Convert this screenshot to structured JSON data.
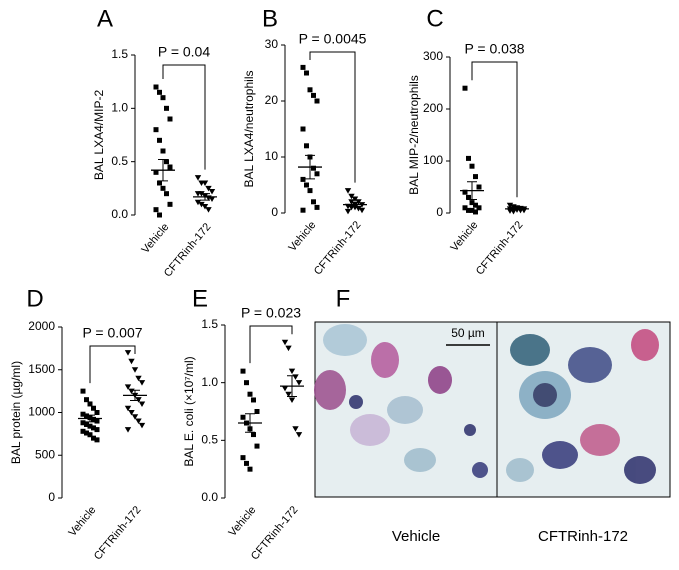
{
  "chart_data": [
    {
      "type": "strip",
      "title": "A",
      "ylabel": "BAL LXA4/MIP-2",
      "annotation": "P = 0.04",
      "categories": [
        "Vehicle",
        "CFTRinh-172"
      ],
      "groups": [
        {
          "values": [
            1.2,
            1.15,
            1.1,
            1.0,
            0.9,
            0.8,
            0.7,
            0.6,
            0.5,
            0.45,
            0.4,
            0.3,
            0.25,
            0.2,
            0.1,
            0.05,
            0.0
          ],
          "mean": 0.42,
          "sem": 0.1
        },
        {
          "values": [
            0.35,
            0.3,
            0.3,
            0.25,
            0.22,
            0.2,
            0.2,
            0.18,
            0.16,
            0.15,
            0.12,
            0.1,
            0.08,
            0.05
          ],
          "mean": 0.17,
          "sem": 0.03
        }
      ],
      "ylim": [
        0,
        1.5
      ],
      "yticks": [
        {
          "value": 0,
          "label": "0.0"
        },
        {
          "value": 0.5,
          "label": "0.5"
        },
        {
          "value": 1,
          "label": "1.0"
        },
        {
          "value": 1.5,
          "label": "1.5"
        }
      ],
      "color": "#000000"
    },
    {
      "type": "strip",
      "title": "B",
      "ylabel": "BAL LXA4/neutrophils",
      "annotation": "P = 0.0045",
      "categories": [
        "Vehicle",
        "CFTRinh-172"
      ],
      "groups": [
        {
          "values": [
            26,
            25,
            22,
            21,
            20,
            15,
            12,
            10,
            8,
            7,
            6,
            5,
            4,
            2,
            1,
            0.5
          ],
          "mean": 8.2,
          "sem": 2.1
        },
        {
          "values": [
            4,
            3,
            2.5,
            2,
            1.5,
            1.2,
            1,
            1,
            0.8,
            0.5,
            0.3,
            2,
            1.5
          ],
          "mean": 1.5,
          "sem": 0.4
        }
      ],
      "ylim": [
        0,
        30
      ],
      "yticks": [
        0,
        10,
        20,
        30
      ],
      "color": "#000000"
    },
    {
      "type": "strip",
      "title": "C",
      "ylabel": "BAL MIP-2/neutrophils",
      "annotation": "P = 0.038",
      "categories": [
        "Vehicle",
        "CFTRinh-172"
      ],
      "groups": [
        {
          "values": [
            240,
            105,
            90,
            70,
            50,
            40,
            30,
            20,
            15,
            10,
            10,
            5,
            5,
            2
          ],
          "mean": 43,
          "sem": 17
        },
        {
          "values": [
            15,
            12,
            10,
            9,
            8,
            8,
            7,
            6,
            5,
            5,
            4,
            3
          ],
          "mean": 8,
          "sem": 1
        }
      ],
      "ylim": [
        0,
        300
      ],
      "yticks": [
        0,
        100,
        200,
        300
      ],
      "color": "#000000"
    },
    {
      "type": "strip",
      "title": "D",
      "ylabel": "BAL protein (µg/ml)",
      "annotation": "P = 0.007",
      "categories": [
        "Vehicle",
        "CFTRinh-172"
      ],
      "groups": [
        {
          "values": [
            1250,
            1150,
            1100,
            1050,
            1000,
            980,
            960,
            940,
            920,
            900,
            880,
            860,
            840,
            820,
            800,
            780,
            760,
            740,
            700,
            680
          ],
          "mean": 930,
          "sem": 40
        },
        {
          "values": [
            1700,
            1600,
            1500,
            1400,
            1350,
            1300,
            1250,
            1200,
            1150,
            1100,
            1050,
            1000,
            950,
            900,
            850,
            800
          ],
          "mean": 1200,
          "sem": 60
        }
      ],
      "ylim": [
        0,
        2000
      ],
      "yticks": [
        0,
        500,
        1000,
        1500,
        2000
      ],
      "color": "#000000"
    },
    {
      "type": "strip",
      "title": "E",
      "ylabel": "BAL E. coli (×10⁷/ml)",
      "annotation": "P = 0.023",
      "categories": [
        "Vehicle",
        "CFTRinh-172"
      ],
      "groups": [
        {
          "values": [
            1.1,
            1.0,
            0.9,
            0.85,
            0.75,
            0.7,
            0.65,
            0.6,
            0.55,
            0.45,
            0.35,
            0.3,
            0.25
          ],
          "mean": 0.65,
          "sem": 0.08
        },
        {
          "values": [
            1.35,
            1.3,
            1.1,
            1.05,
            1.0,
            0.95,
            0.9,
            0.85,
            0.6,
            0.55
          ],
          "mean": 0.97,
          "sem": 0.09
        }
      ],
      "ylim": [
        0,
        1.5
      ],
      "yticks": [
        {
          "value": 0,
          "label": "0.0"
        },
        {
          "value": 0.5,
          "label": "0.5"
        },
        {
          "value": 1,
          "label": "1.0"
        },
        {
          "value": 1.5,
          "label": "1.5"
        }
      ],
      "color": "#000000"
    }
  ],
  "image_panel": {
    "title": "F",
    "scale_bar": "50 µm",
    "labels": [
      "Vehicle",
      "CFTRinh-172"
    ]
  }
}
